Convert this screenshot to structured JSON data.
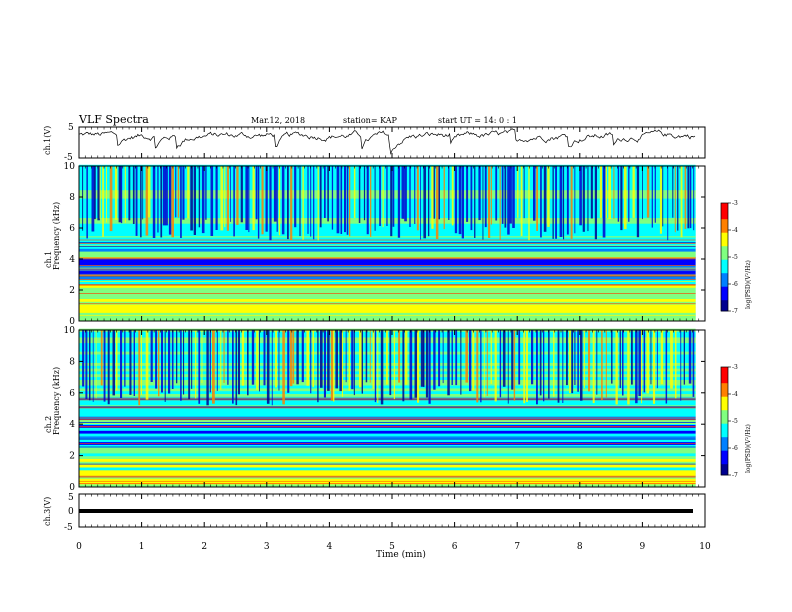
{
  "header": {
    "title": "VLF Spectra",
    "date": "Mar.12, 2018",
    "station": "station= KAP",
    "start_ut": "start  UT =   14: 0  : 1"
  },
  "chart_data": [
    {
      "type": "line",
      "panel": "ch1-waveform",
      "ylabel": "ch.1(V)",
      "ylim": [
        -5,
        5
      ],
      "yticks": [
        "5",
        "-5"
      ],
      "xlim": [
        0,
        10
      ],
      "x_end": 9.85,
      "description_values": "noisy waveform fluctuating mostly between 0 and 5 V"
    },
    {
      "type": "heatmap",
      "panel": "ch1-spectrogram",
      "ylabel": "ch.1\nFrequency (kHz)",
      "ylim": [
        0,
        10
      ],
      "yticks": [
        "0",
        "2",
        "4",
        "6",
        "8",
        "10"
      ],
      "xlim": [
        0,
        10
      ],
      "x_end": 9.85,
      "colorbar": {
        "label": "log(PSD)(V²/Hz)",
        "range": [
          -7,
          -3
        ],
        "ticks": [
          "-3",
          "-4",
          "-5",
          "-6",
          "-7"
        ]
      }
    },
    {
      "type": "heatmap",
      "panel": "ch2-spectrogram",
      "ylabel": "ch.2\nFrequency (kHz)",
      "ylim": [
        0,
        10
      ],
      "yticks": [
        "0",
        "2",
        "4",
        "6",
        "8",
        "10"
      ],
      "xlim": [
        0,
        10
      ],
      "x_end": 9.85,
      "colorbar": {
        "label": "log(PSD)(V²/Hz)",
        "range": [
          -7,
          -3
        ],
        "ticks": [
          "-3",
          "-4",
          "-5",
          "-6",
          "-7"
        ]
      }
    },
    {
      "type": "line",
      "panel": "ch3-waveform",
      "ylabel": "ch.3(V)",
      "ylim": [
        -5,
        5
      ],
      "yticks": [
        "5",
        "0",
        "-5"
      ],
      "xlim": [
        0,
        10
      ],
      "x_end": 9.85,
      "constant_value": 0
    }
  ],
  "xaxis": {
    "label": "Time (min)",
    "ticks": [
      "0",
      "1",
      "2",
      "3",
      "4",
      "5",
      "6",
      "7",
      "8",
      "9",
      "10"
    ]
  },
  "colors": {
    "jet": [
      "#00008f",
      "#0000ff",
      "#0080ff",
      "#00ffff",
      "#80ff80",
      "#ffff00",
      "#ff8000",
      "#ff0000",
      "#800000"
    ]
  }
}
